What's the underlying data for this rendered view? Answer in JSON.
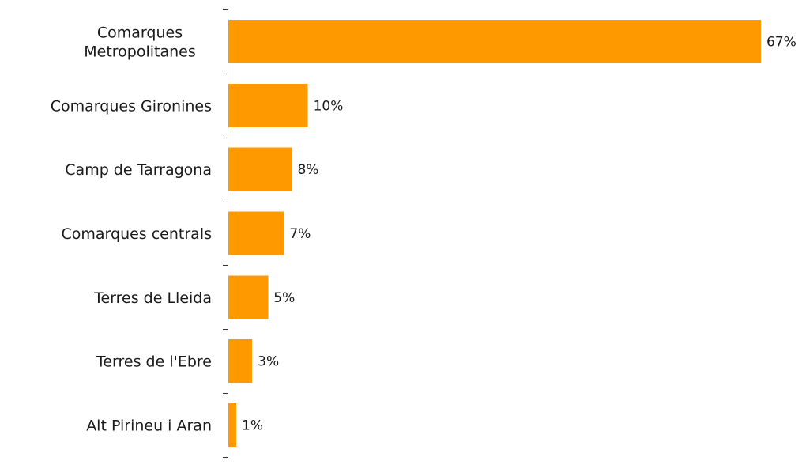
{
  "chart_data": {
    "type": "bar",
    "orientation": "horizontal",
    "categories": [
      "Comarques Metropolitanes",
      "Comarques Gironines",
      "Camp de Tarragona",
      "Comarques centrals",
      "Terres de Lleida",
      "Terres de l'Ebre",
      "Alt Pirineu i Aran"
    ],
    "category_lines": [
      [
        "Comarques",
        "Metropolitanes"
      ],
      [
        "Comarques Gironines"
      ],
      [
        "Camp de Tarragona"
      ],
      [
        "Comarques centrals"
      ],
      [
        "Terres de Lleida"
      ],
      [
        "Terres de l'Ebre"
      ],
      [
        "Alt Pirineu i Aran"
      ]
    ],
    "values": [
      67,
      10,
      8,
      7,
      5,
      3,
      1
    ],
    "data_labels": [
      "67%",
      "10%",
      "8%",
      "7%",
      "5%",
      "3%",
      "1%"
    ],
    "bar_color": "#ff9900",
    "xlim": [
      0,
      67
    ],
    "grid": false,
    "legend": "none"
  }
}
